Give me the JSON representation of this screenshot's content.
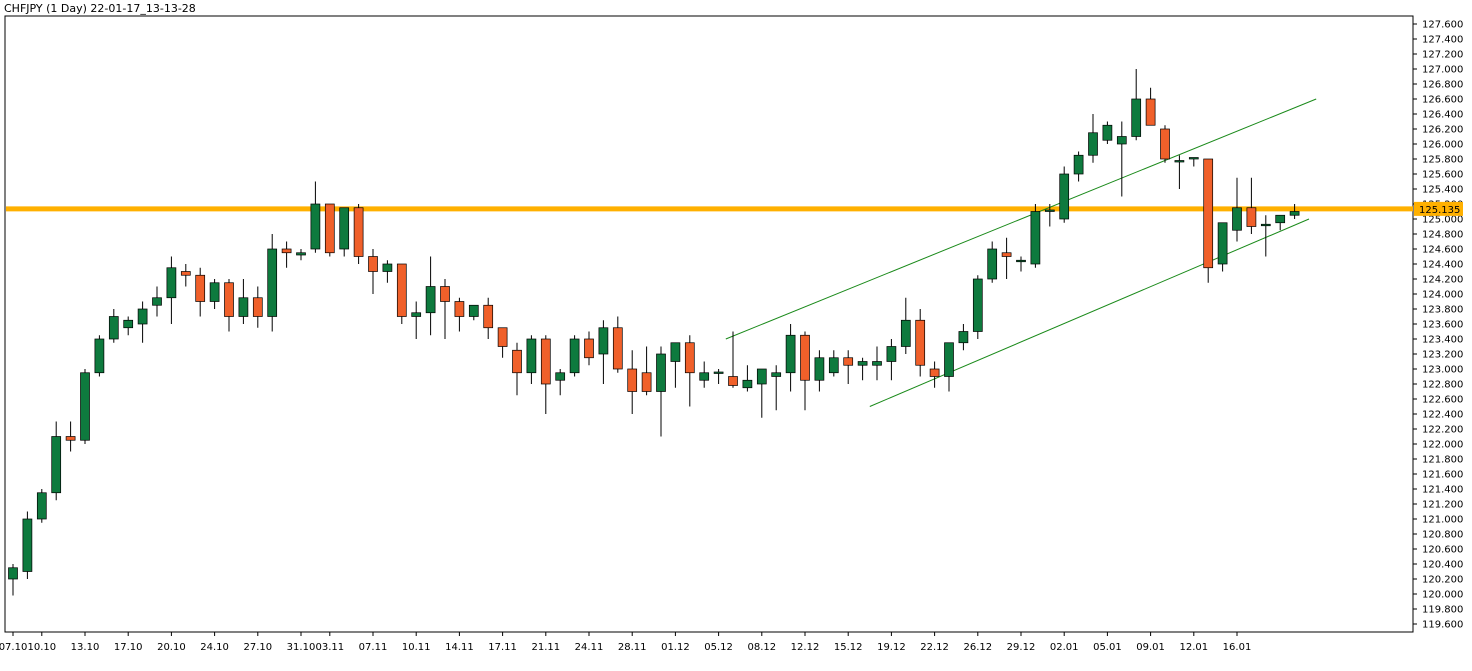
{
  "chart_data": {
    "type": "candlestick",
    "title": "CHFJPY (1 Day) 22-01-17_13-13-28",
    "symbol": "CHFJPY",
    "timeframe": "1 Day",
    "ylim": [
      119.5,
      127.8
    ],
    "y_ticks": [
      127.6,
      127.4,
      127.2,
      127.0,
      126.8,
      126.6,
      126.4,
      126.2,
      126.0,
      125.8,
      125.6,
      125.4,
      125.2,
      125.0,
      124.8,
      124.6,
      124.4,
      124.2,
      124.0,
      123.8,
      123.6,
      123.4,
      123.2,
      123.0,
      122.8,
      122.6,
      122.4,
      122.2,
      122.0,
      121.8,
      121.6,
      121.4,
      121.2,
      121.0,
      120.8,
      120.6,
      120.4,
      120.2,
      120.0,
      119.8,
      119.6
    ],
    "x_tick_labels": [
      "07.10",
      "10.10",
      "13.10",
      "17.10",
      "20.10",
      "24.10",
      "27.10",
      "31.10",
      "03.11",
      "07.11",
      "10.11",
      "14.11",
      "17.11",
      "21.11",
      "24.11",
      "28.11",
      "01.12",
      "05.12",
      "08.12",
      "12.12",
      "15.12",
      "19.12",
      "22.12",
      "26.12",
      "29.12",
      "02.01",
      "05.01",
      "09.01",
      "12.01",
      "16.01"
    ],
    "x_tick_bars": [
      0,
      2,
      5,
      8,
      11,
      14,
      17,
      20,
      22,
      25,
      28,
      31,
      34,
      37,
      40,
      43,
      46,
      49,
      52,
      55,
      58,
      61,
      64,
      67,
      70,
      73,
      76,
      79,
      82,
      85
    ],
    "current_price": 125.135,
    "current_price_label": "125.135",
    "horizontal_level": 125.135,
    "bull_color": "#0e7a3e",
    "bear_color": "#f0602a",
    "level_color": "#ffb000",
    "trend_color": "#1a8a1a",
    "candles": [
      {
        "o": 120.2,
        "h": 120.4,
        "l": 119.98,
        "c": 120.35
      },
      {
        "o": 120.3,
        "h": 121.1,
        "l": 120.2,
        "c": 121.0
      },
      {
        "o": 121.0,
        "h": 121.4,
        "l": 120.95,
        "c": 121.35
      },
      {
        "o": 121.35,
        "h": 122.3,
        "l": 121.25,
        "c": 122.1
      },
      {
        "o": 122.1,
        "h": 122.3,
        "l": 121.9,
        "c": 122.05
      },
      {
        "o": 122.05,
        "h": 123.0,
        "l": 122.0,
        "c": 122.95
      },
      {
        "o": 122.95,
        "h": 123.45,
        "l": 122.9,
        "c": 123.4
      },
      {
        "o": 123.4,
        "h": 123.8,
        "l": 123.35,
        "c": 123.7
      },
      {
        "o": 123.55,
        "h": 123.7,
        "l": 123.45,
        "c": 123.65
      },
      {
        "o": 123.6,
        "h": 123.9,
        "l": 123.35,
        "c": 123.8
      },
      {
        "o": 123.85,
        "h": 124.1,
        "l": 123.7,
        "c": 123.95
      },
      {
        "o": 123.95,
        "h": 124.5,
        "l": 123.6,
        "c": 124.35
      },
      {
        "o": 124.3,
        "h": 124.4,
        "l": 124.1,
        "c": 124.25
      },
      {
        "o": 124.25,
        "h": 124.35,
        "l": 123.7,
        "c": 123.9
      },
      {
        "o": 123.9,
        "h": 124.2,
        "l": 123.8,
        "c": 124.15
      },
      {
        "o": 124.15,
        "h": 124.2,
        "l": 123.5,
        "c": 123.7
      },
      {
        "o": 123.7,
        "h": 124.2,
        "l": 123.6,
        "c": 123.95
      },
      {
        "o": 123.95,
        "h": 124.1,
        "l": 123.55,
        "c": 123.7
      },
      {
        "o": 123.7,
        "h": 124.8,
        "l": 123.5,
        "c": 124.6
      },
      {
        "o": 124.6,
        "h": 124.7,
        "l": 124.35,
        "c": 124.55
      },
      {
        "o": 124.52,
        "h": 124.6,
        "l": 124.45,
        "c": 124.55
      },
      {
        "o": 124.6,
        "h": 125.5,
        "l": 124.55,
        "c": 125.2
      },
      {
        "o": 125.2,
        "h": 125.2,
        "l": 124.5,
        "c": 124.55
      },
      {
        "o": 124.6,
        "h": 125.15,
        "l": 124.5,
        "c": 125.15
      },
      {
        "o": 125.15,
        "h": 125.2,
        "l": 124.4,
        "c": 124.5
      },
      {
        "o": 124.5,
        "h": 124.6,
        "l": 124.0,
        "c": 124.3
      },
      {
        "o": 124.3,
        "h": 124.45,
        "l": 124.15,
        "c": 124.4
      },
      {
        "o": 124.4,
        "h": 124.4,
        "l": 123.6,
        "c": 123.7
      },
      {
        "o": 123.7,
        "h": 123.9,
        "l": 123.4,
        "c": 123.75
      },
      {
        "o": 123.75,
        "h": 124.5,
        "l": 123.45,
        "c": 124.1
      },
      {
        "o": 124.1,
        "h": 124.2,
        "l": 123.4,
        "c": 123.9
      },
      {
        "o": 123.9,
        "h": 123.95,
        "l": 123.5,
        "c": 123.7
      },
      {
        "o": 123.7,
        "h": 123.85,
        "l": 123.65,
        "c": 123.85
      },
      {
        "o": 123.85,
        "h": 123.95,
        "l": 123.4,
        "c": 123.55
      },
      {
        "o": 123.55,
        "h": 123.55,
        "l": 123.15,
        "c": 123.3
      },
      {
        "o": 123.25,
        "h": 123.35,
        "l": 122.65,
        "c": 122.95
      },
      {
        "o": 122.95,
        "h": 123.45,
        "l": 122.8,
        "c": 123.4
      },
      {
        "o": 123.4,
        "h": 123.45,
        "l": 122.4,
        "c": 122.8
      },
      {
        "o": 122.85,
        "h": 123.0,
        "l": 122.65,
        "c": 122.95
      },
      {
        "o": 122.95,
        "h": 123.45,
        "l": 122.9,
        "c": 123.4
      },
      {
        "o": 123.4,
        "h": 123.5,
        "l": 123.05,
        "c": 123.15
      },
      {
        "o": 123.2,
        "h": 123.65,
        "l": 122.8,
        "c": 123.55
      },
      {
        "o": 123.55,
        "h": 123.7,
        "l": 122.95,
        "c": 123.0
      },
      {
        "o": 123.0,
        "h": 123.25,
        "l": 122.4,
        "c": 122.7
      },
      {
        "o": 122.95,
        "h": 123.3,
        "l": 122.65,
        "c": 122.7
      },
      {
        "o": 122.7,
        "h": 123.3,
        "l": 122.1,
        "c": 123.2
      },
      {
        "o": 123.1,
        "h": 123.35,
        "l": 122.75,
        "c": 123.35
      },
      {
        "o": 123.35,
        "h": 123.45,
        "l": 122.5,
        "c": 122.95
      },
      {
        "o": 122.85,
        "h": 123.1,
        "l": 122.75,
        "c": 122.95
      },
      {
        "o": 122.95,
        "h": 123.0,
        "l": 122.8,
        "c": 122.96
      },
      {
        "o": 122.9,
        "h": 123.5,
        "l": 122.75,
        "c": 122.78
      },
      {
        "o": 122.75,
        "h": 123.05,
        "l": 122.7,
        "c": 122.85
      },
      {
        "o": 122.8,
        "h": 123.0,
        "l": 122.35,
        "c": 123.0
      },
      {
        "o": 122.9,
        "h": 123.05,
        "l": 122.45,
        "c": 122.95
      },
      {
        "o": 122.95,
        "h": 123.6,
        "l": 122.7,
        "c": 123.45
      },
      {
        "o": 123.45,
        "h": 123.5,
        "l": 122.45,
        "c": 122.85
      },
      {
        "o": 122.85,
        "h": 123.25,
        "l": 122.7,
        "c": 123.15
      },
      {
        "o": 122.95,
        "h": 123.25,
        "l": 122.9,
        "c": 123.15
      },
      {
        "o": 123.15,
        "h": 123.25,
        "l": 122.8,
        "c": 123.05
      },
      {
        "o": 123.05,
        "h": 123.15,
        "l": 122.85,
        "c": 123.1
      },
      {
        "o": 123.05,
        "h": 123.3,
        "l": 122.85,
        "c": 123.1
      },
      {
        "o": 123.1,
        "h": 123.4,
        "l": 122.85,
        "c": 123.3
      },
      {
        "o": 123.3,
        "h": 123.95,
        "l": 123.2,
        "c": 123.65
      },
      {
        "o": 123.65,
        "h": 123.8,
        "l": 122.9,
        "c": 123.05
      },
      {
        "o": 123.0,
        "h": 123.1,
        "l": 122.75,
        "c": 122.9
      },
      {
        "o": 122.9,
        "h": 123.35,
        "l": 122.7,
        "c": 123.35
      },
      {
        "o": 123.35,
        "h": 123.6,
        "l": 123.25,
        "c": 123.5
      },
      {
        "o": 123.5,
        "h": 124.25,
        "l": 123.4,
        "c": 124.2
      },
      {
        "o": 124.2,
        "h": 124.7,
        "l": 124.15,
        "c": 124.6
      },
      {
        "o": 124.55,
        "h": 124.75,
        "l": 124.2,
        "c": 124.5
      },
      {
        "o": 124.45,
        "h": 124.5,
        "l": 124.3,
        "c": 124.45
      },
      {
        "o": 124.4,
        "h": 125.2,
        "l": 124.35,
        "c": 125.1
      },
      {
        "o": 125.12,
        "h": 125.2,
        "l": 124.9,
        "c": 125.12
      },
      {
        "o": 125.0,
        "h": 125.7,
        "l": 124.95,
        "c": 125.6
      },
      {
        "o": 125.6,
        "h": 125.9,
        "l": 125.5,
        "c": 125.85
      },
      {
        "o": 125.85,
        "h": 126.4,
        "l": 125.75,
        "c": 126.15
      },
      {
        "o": 126.05,
        "h": 126.3,
        "l": 126.0,
        "c": 126.25
      },
      {
        "o": 126.0,
        "h": 126.3,
        "l": 125.3,
        "c": 126.1
      },
      {
        "o": 126.1,
        "h": 127.0,
        "l": 126.05,
        "c": 126.6
      },
      {
        "o": 126.6,
        "h": 126.75,
        "l": 126.25,
        "c": 126.25
      },
      {
        "o": 126.2,
        "h": 126.25,
        "l": 125.75,
        "c": 125.8
      },
      {
        "o": 125.78,
        "h": 125.85,
        "l": 125.4,
        "c": 125.78
      },
      {
        "o": 125.8,
        "h": 125.8,
        "l": 125.7,
        "c": 125.82
      },
      {
        "o": 125.8,
        "h": 125.8,
        "l": 124.15,
        "c": 124.35
      },
      {
        "o": 124.4,
        "h": 124.9,
        "l": 124.3,
        "c": 124.95
      },
      {
        "o": 124.85,
        "h": 125.55,
        "l": 124.7,
        "c": 125.15
      },
      {
        "o": 125.15,
        "h": 125.55,
        "l": 124.8,
        "c": 124.9
      },
      {
        "o": 124.93,
        "h": 125.05,
        "l": 124.5,
        "c": 124.93
      },
      {
        "o": 124.95,
        "h": 125.05,
        "l": 124.85,
        "c": 125.05
      },
      {
        "o": 125.05,
        "h": 125.2,
        "l": 125.0,
        "c": 125.1
      }
    ],
    "trendlines": [
      {
        "x0": 49.5,
        "y0": 123.4,
        "x1": 90.5,
        "y1": 126.6
      },
      {
        "x0": 59.5,
        "y0": 122.5,
        "x1": 90.0,
        "y1": 125.0
      }
    ]
  }
}
